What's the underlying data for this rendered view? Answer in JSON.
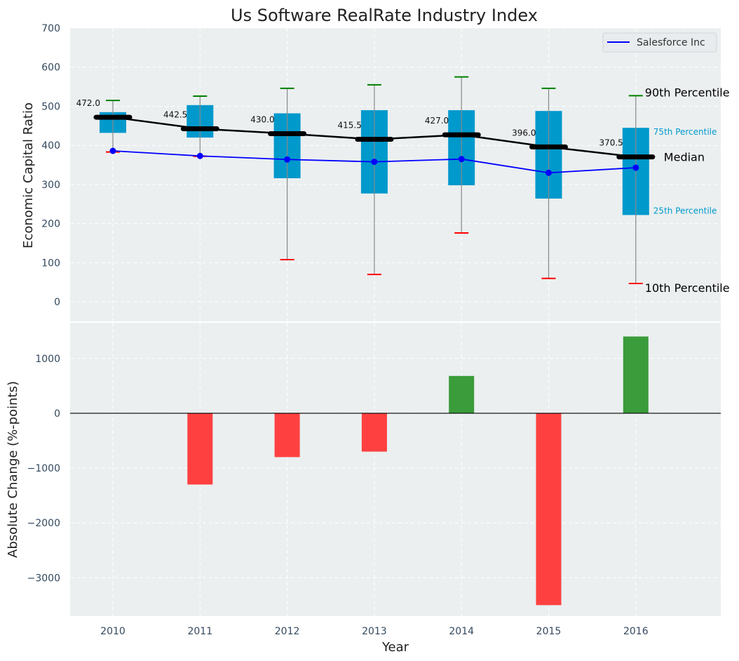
{
  "chart_data": [
    {
      "type": "box",
      "title": "Us Software RealRate Industry Index",
      "xlabel": "",
      "ylabel": "Economic Capital Ratio",
      "ylim": [
        -50,
        700
      ],
      "yticks": [
        0,
        100,
        200,
        300,
        400,
        500,
        600,
        700
      ],
      "categories": [
        "2010",
        "2011",
        "2012",
        "2013",
        "2014",
        "2015",
        "2016"
      ],
      "grid": true,
      "legend": {
        "placement": "top-right",
        "entries": [
          "Salesforce Inc"
        ]
      },
      "series": [
        {
          "name": "p10",
          "values": [
            383,
            372,
            108,
            70,
            176,
            60,
            47
          ]
        },
        {
          "name": "p25",
          "values": [
            432,
            420,
            316,
            277,
            298,
            264,
            222
          ]
        },
        {
          "name": "median",
          "values": [
            472.0,
            442.5,
            430.0,
            415.5,
            427.0,
            396.0,
            370.5
          ]
        },
        {
          "name": "p75",
          "values": [
            485,
            503,
            482,
            490,
            490,
            488,
            445
          ]
        },
        {
          "name": "p90",
          "values": [
            515,
            526,
            546,
            555,
            575,
            546,
            527
          ]
        },
        {
          "name": "Salesforce Inc",
          "values": [
            386,
            373,
            364,
            358,
            365,
            330,
            343
          ]
        }
      ],
      "median_labels": [
        "472.0",
        "442.5",
        "430.0",
        "415.5",
        "427.0",
        "396.0",
        "370.5"
      ],
      "annotations": {
        "p90": "90th Percentile",
        "p75": "75th Percentile",
        "median": "Median",
        "p25": "25th Percentile",
        "p10": "10th Percentile"
      },
      "colors": {
        "box": "#0099cc",
        "median": "#000000",
        "company": "#0000ff",
        "p90_cap": "#008000",
        "p10_cap": "#ff0000",
        "whisker": "#888888"
      }
    },
    {
      "type": "bar",
      "title": "",
      "xlabel": "Year",
      "ylabel": "Absolute Change (%-points)",
      "ylim": [
        -3700,
        1650
      ],
      "yticks": [
        -3000,
        -2000,
        -1000,
        0,
        1000
      ],
      "categories": [
        "2010",
        "2011",
        "2012",
        "2013",
        "2014",
        "2015",
        "2016"
      ],
      "values": [
        0,
        -1300,
        -800,
        -700,
        680,
        -3500,
        1400
      ],
      "grid": true,
      "colors": {
        "positive": "#3a9c3a",
        "negative": "#ff4040"
      }
    }
  ]
}
